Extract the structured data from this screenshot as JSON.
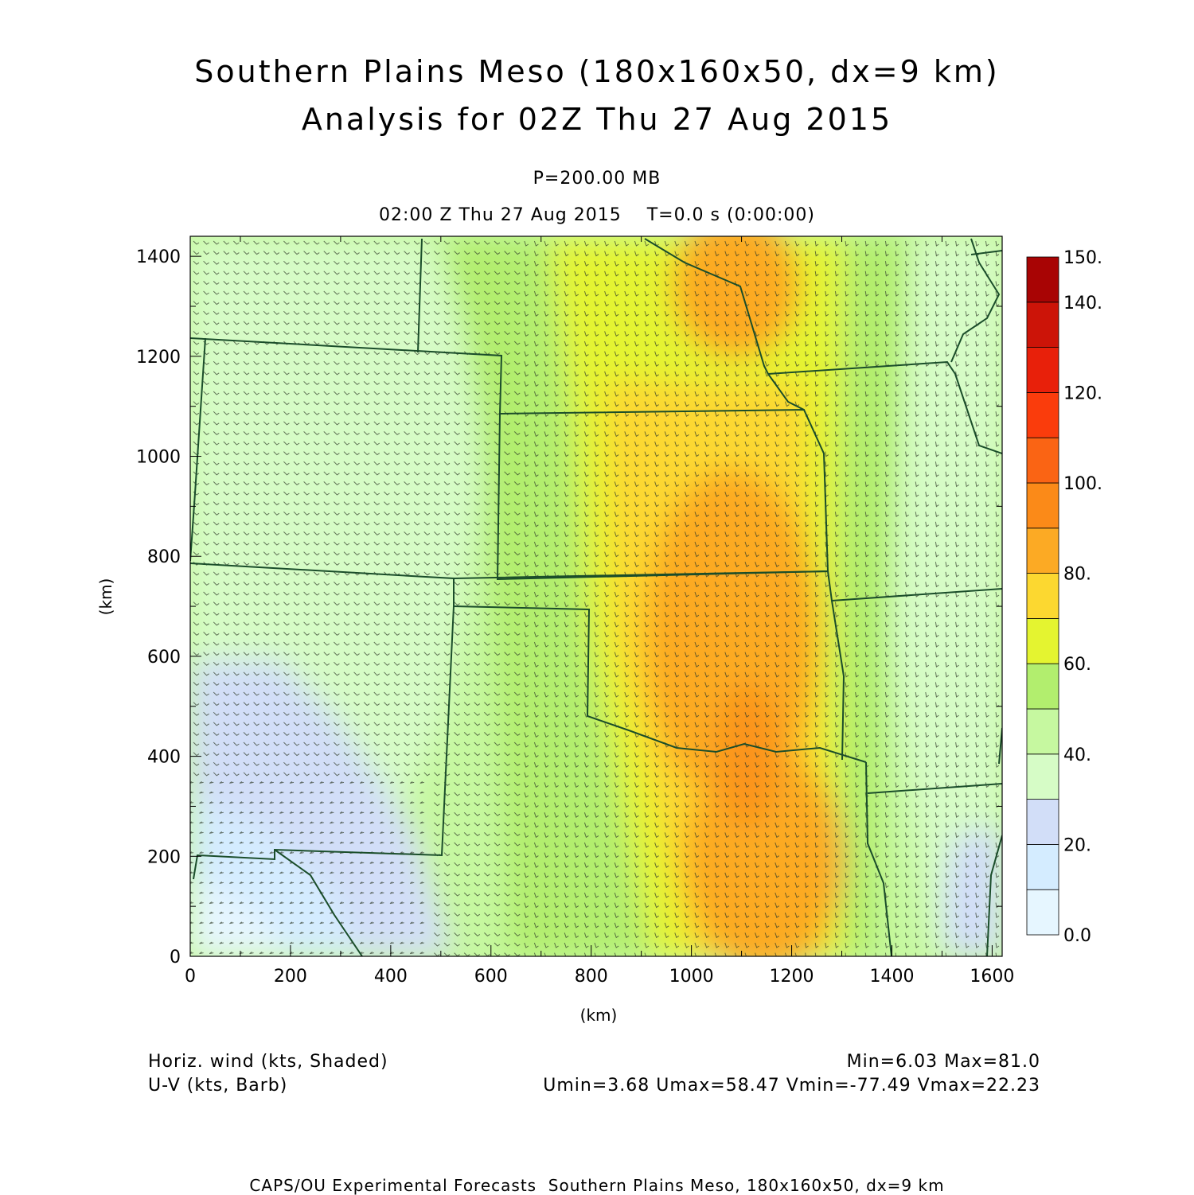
{
  "header": {
    "title_line1": "Southern Plains Meso (180x160x50, dx=9 km)",
    "title_line2": "Analysis for 02Z Thu 27 Aug 2015",
    "level": "P=200.00 MB",
    "time": "02:00 Z Thu 27 Aug 2015    T=0.0 s (0:00:00)"
  },
  "chart_data": {
    "type": "heatmap",
    "description_fields": [
      "Horiz. wind (kts, Shaded)",
      "U-V (kts, Barb)"
    ],
    "xlabel": "(km)",
    "ylabel": "(km)",
    "xlim": [
      0,
      1620
    ],
    "ylim": [
      0,
      1440
    ],
    "x_ticks": [
      "0",
      "200",
      "400",
      "600",
      "800",
      "1000",
      "1200",
      "1400",
      "1600"
    ],
    "y_ticks": [
      "0",
      "200",
      "400",
      "600",
      "800",
      "1000",
      "1200",
      "1400"
    ],
    "colorbar": {
      "min": 0,
      "max": 150,
      "step": 10,
      "labels": [
        "0.0",
        "20.",
        "40.",
        "60.",
        "80.",
        "100.",
        "120.",
        "140.",
        "150."
      ],
      "colors": [
        "#e6f6ff",
        "#d4ecff",
        "#d2def8",
        "#d6fcc6",
        "#c6f8a0",
        "#b2ee6e",
        "#e4f430",
        "#fcd830",
        "#fcaa24",
        "#fb8a18",
        "#fa6414",
        "#fa3c0c",
        "#e8200a",
        "#cc1408",
        "#a80404"
      ]
    },
    "stats": {
      "speed": "Min=6.03 Max=81.0",
      "uv": "Umin=3.68 Umax=58.47 Vmin=-77.49 Vmax=22.23"
    }
  },
  "footer": {
    "credit": "CAPS/OU Experimental Forecasts  Southern Plains Meso, 180x160x50, dx=9 km"
  }
}
